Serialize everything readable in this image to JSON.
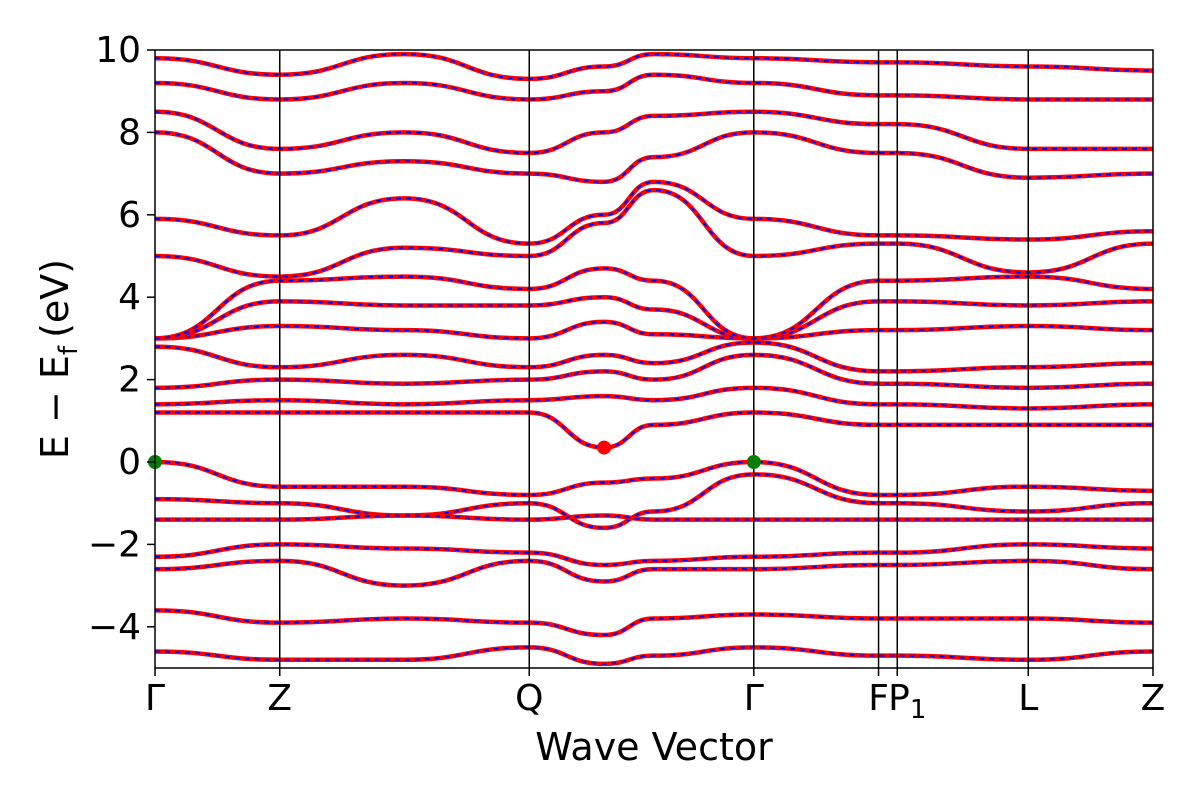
{
  "chart_data": {
    "type": "line",
    "title": "",
    "xlabel": "Wave Vector",
    "ylabel": "E − E_f (eV)",
    "ylabel_main": "E − E",
    "ylabel_sub": "f",
    "ylabel_unit": "(eV)",
    "xlim": [
      0,
      8
    ],
    "ylim": [
      -5,
      10
    ],
    "yticks": [
      -4,
      -2,
      0,
      2,
      4,
      6,
      8,
      10
    ],
    "ytick_labels": [
      "−4",
      "−2",
      "0",
      "2",
      "4",
      "6",
      "8",
      "10"
    ],
    "kpoints": [
      {
        "label": "Γ",
        "x": 0
      },
      {
        "label": "Z",
        "x": 1
      },
      {
        "label": "Q",
        "x": 3
      },
      {
        "label": "Γ",
        "x": 4.8
      },
      {
        "label": "F",
        "x": 5.8
      },
      {
        "label": "P1",
        "label_main": "P",
        "label_sub": "1",
        "x": 5.95
      },
      {
        "label": "L",
        "x": 7
      },
      {
        "label": "Z",
        "x": 8
      }
    ],
    "grid": false,
    "legend": "none",
    "colors": {
      "series_a": "#ff0000",
      "series_b": "#0000ff",
      "vbm_marker": "#008000",
      "cbm_marker": "#ff0000"
    },
    "band_edges": {
      "vbm": [
        {
          "x": 0,
          "y": 0
        },
        {
          "x": 4.8,
          "y": 0
        }
      ],
      "cbm": [
        {
          "x": 3.6,
          "y": 0.35
        }
      ]
    },
    "series": [
      {
        "x": [
          0,
          1,
          2,
          3,
          3.6,
          4,
          4.8,
          5.8,
          5.95,
          7,
          8
        ],
        "y": [
          0,
          -0.6,
          -0.6,
          -0.8,
          -0.5,
          -0.4,
          0,
          -0.8,
          -0.8,
          -0.6,
          -0.7
        ]
      },
      {
        "x": [
          0,
          1,
          2,
          3,
          3.6,
          4,
          4.8,
          5.8,
          5.95,
          7,
          8
        ],
        "y": [
          -0.9,
          -1.0,
          -1.3,
          -1.0,
          -1.6,
          -1.2,
          -0.3,
          -1.0,
          -1.0,
          -1.2,
          -1.0
        ]
      },
      {
        "x": [
          0,
          1,
          2,
          3,
          3.6,
          4,
          4.8,
          5.8,
          5.95,
          7,
          8
        ],
        "y": [
          -1.4,
          -1.4,
          -1.3,
          -1.4,
          -1.3,
          -1.4,
          -1.4,
          -1.4,
          -1.4,
          -1.4,
          -1.4
        ]
      },
      {
        "x": [
          0,
          1,
          2,
          3,
          3.6,
          4,
          4.8,
          5.8,
          5.95,
          7,
          8
        ],
        "y": [
          -2.3,
          -2.0,
          -2.1,
          -2.2,
          -2.5,
          -2.4,
          -2.3,
          -2.2,
          -2.2,
          -2.0,
          -2.1
        ]
      },
      {
        "x": [
          0,
          1,
          2,
          3,
          3.6,
          4,
          4.8,
          5.8,
          5.95,
          7,
          8
        ],
        "y": [
          -2.6,
          -2.4,
          -3.0,
          -2.4,
          -2.9,
          -2.6,
          -2.6,
          -2.5,
          -2.5,
          -2.4,
          -2.6
        ]
      },
      {
        "x": [
          0,
          1,
          2,
          3,
          3.6,
          4,
          4.8,
          5.8,
          5.95,
          7,
          8
        ],
        "y": [
          -3.6,
          -3.9,
          -3.8,
          -3.9,
          -4.2,
          -3.8,
          -3.7,
          -3.8,
          -3.8,
          -3.8,
          -3.9
        ]
      },
      {
        "x": [
          0,
          1,
          2,
          3,
          3.6,
          4,
          4.8,
          5.8,
          5.95,
          7,
          8
        ],
        "y": [
          -4.6,
          -4.8,
          -4.8,
          -4.5,
          -4.9,
          -4.7,
          -4.5,
          -4.7,
          -4.7,
          -4.8,
          -4.6
        ]
      },
      {
        "x": [
          0,
          1,
          2,
          3,
          3.6,
          4,
          4.8,
          5.8,
          5.95,
          7,
          8
        ],
        "y": [
          1.2,
          1.2,
          1.2,
          1.2,
          0.35,
          0.9,
          1.2,
          0.9,
          0.9,
          0.9,
          0.9
        ]
      },
      {
        "x": [
          0,
          1,
          2,
          3,
          3.6,
          4,
          4.8,
          5.8,
          5.95,
          7,
          8
        ],
        "y": [
          1.4,
          1.5,
          1.4,
          1.5,
          1.6,
          1.5,
          1.8,
          1.4,
          1.4,
          1.3,
          1.4
        ]
      },
      {
        "x": [
          0,
          1,
          2,
          3,
          3.6,
          4,
          4.8,
          5.8,
          5.95,
          7,
          8
        ],
        "y": [
          1.8,
          2.0,
          1.9,
          2.0,
          2.2,
          2.0,
          2.6,
          1.9,
          1.9,
          1.8,
          1.9
        ]
      },
      {
        "x": [
          0,
          1,
          2,
          3,
          3.6,
          4,
          4.8,
          5.8,
          5.95,
          7,
          8
        ],
        "y": [
          2.8,
          2.3,
          2.6,
          2.3,
          2.6,
          2.4,
          2.9,
          2.2,
          2.2,
          2.3,
          2.4
        ]
      },
      {
        "x": [
          0,
          1,
          2,
          3,
          3.6,
          4,
          4.8,
          5.8,
          5.95,
          7,
          8
        ],
        "y": [
          3.0,
          3.3,
          3.2,
          3.0,
          3.4,
          3.1,
          3.0,
          3.2,
          3.2,
          3.3,
          3.2
        ]
      },
      {
        "x": [
          0,
          1,
          2,
          3,
          3.6,
          4,
          4.8,
          5.8,
          5.95,
          7,
          8
        ],
        "y": [
          3.0,
          3.9,
          3.8,
          3.8,
          4.0,
          3.7,
          3.0,
          3.9,
          3.9,
          3.8,
          3.9
        ]
      },
      {
        "x": [
          0,
          1,
          2,
          3,
          3.6,
          4,
          4.8,
          5.8,
          5.95,
          7,
          8
        ],
        "y": [
          3.0,
          4.4,
          4.5,
          4.2,
          4.7,
          4.4,
          3.0,
          4.4,
          4.4,
          4.5,
          4.2
        ]
      },
      {
        "x": [
          0,
          1,
          2,
          3,
          3.6,
          4,
          4.8,
          5.8,
          5.95,
          7,
          8
        ],
        "y": [
          5.0,
          4.5,
          5.2,
          5.0,
          5.8,
          6.6,
          5.0,
          5.3,
          5.3,
          4.6,
          5.3
        ]
      },
      {
        "x": [
          0,
          1,
          2,
          3,
          3.6,
          4,
          4.8,
          5.8,
          5.95,
          7,
          8
        ],
        "y": [
          5.9,
          5.5,
          6.4,
          5.3,
          6.0,
          6.8,
          5.9,
          5.5,
          5.5,
          5.4,
          5.6
        ]
      },
      {
        "x": [
          0,
          1,
          2,
          3,
          3.6,
          4,
          4.8,
          5.8,
          5.95,
          7,
          8
        ],
        "y": [
          8.0,
          7.0,
          7.3,
          7.0,
          6.8,
          7.4,
          8.0,
          7.5,
          7.5,
          6.9,
          7.0
        ]
      },
      {
        "x": [
          0,
          1,
          2,
          3,
          3.6,
          4,
          4.8,
          5.8,
          5.95,
          7,
          8
        ],
        "y": [
          8.5,
          7.6,
          8.0,
          7.5,
          8.0,
          8.4,
          8.5,
          8.2,
          8.2,
          7.6,
          7.6
        ]
      },
      {
        "x": [
          0,
          1,
          2,
          3,
          3.6,
          4,
          4.8,
          5.8,
          5.95,
          7,
          8
        ],
        "y": [
          9.2,
          8.8,
          9.2,
          8.8,
          9.0,
          9.4,
          9.2,
          8.9,
          8.9,
          8.8,
          8.8
        ]
      },
      {
        "x": [
          0,
          1,
          2,
          3,
          3.6,
          4,
          4.8,
          5.8,
          5.95,
          7,
          8
        ],
        "y": [
          9.8,
          9.4,
          9.9,
          9.3,
          9.6,
          9.9,
          9.8,
          9.7,
          9.7,
          9.6,
          9.5
        ]
      }
    ]
  }
}
